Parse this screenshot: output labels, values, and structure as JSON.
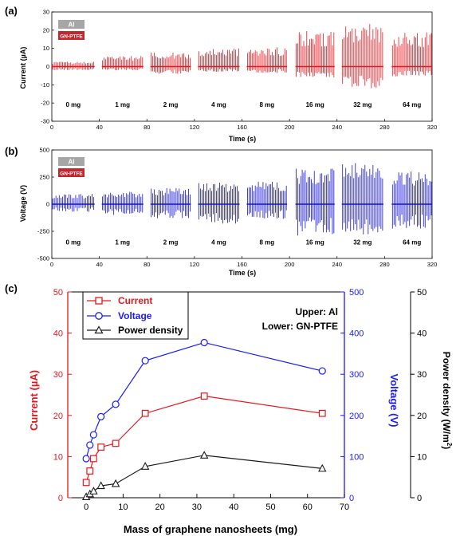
{
  "panel_labels": [
    "(a)",
    "(b)",
    "(c)"
  ],
  "chart_data": [
    {
      "type": "bar",
      "panel": "(a)",
      "ylabel": "Current (µA)",
      "xlabel": "Time (s)",
      "xlim": [
        0,
        320
      ],
      "ylim": [
        -30,
        30
      ],
      "xticks": [
        0,
        40,
        80,
        120,
        160,
        200,
        240,
        280,
        320
      ],
      "yticks": [
        -30,
        -20,
        -10,
        0,
        10,
        20,
        30
      ],
      "legend": [
        "Al",
        "GN-PTFE"
      ],
      "legend_colors": [
        "#a6a6a6",
        "#c0282d"
      ],
      "color": "#e8171d",
      "segments": [
        {
          "label": "0 mg",
          "x": [
            0,
            36
          ],
          "max": 2.7,
          "min": -2.0
        },
        {
          "label": "1 mg",
          "x": [
            42,
            77
          ],
          "max": 5.8,
          "min": -2.0
        },
        {
          "label": "2 mg",
          "x": [
            83,
            117
          ],
          "max": 7.8,
          "min": -4.0
        },
        {
          "label": "4 mg",
          "x": [
            123,
            158
          ],
          "max": 10.0,
          "min": -3.0
        },
        {
          "label": "8 mg",
          "x": [
            164,
            198
          ],
          "max": 10.6,
          "min": -3.5
        },
        {
          "label": "16 mg",
          "x": [
            205,
            238
          ],
          "max": 19.5,
          "min": -6.5
        },
        {
          "label": "32 mg",
          "x": [
            244,
            279
          ],
          "max": 23.5,
          "min": -12.0
        },
        {
          "label": "64 mg",
          "x": [
            286,
            320
          ],
          "max": 19.5,
          "min": -5.5
        }
      ]
    },
    {
      "type": "bar",
      "panel": "(b)",
      "ylabel": "Voltage (V)",
      "xlabel": "Time (s)",
      "xlim": [
        0,
        320
      ],
      "ylim": [
        -500,
        500
      ],
      "xticks": [
        0,
        40,
        80,
        120,
        160,
        200,
        240,
        280,
        320
      ],
      "yticks": [
        -500,
        -250,
        0,
        250,
        500
      ],
      "legend": [
        "Al",
        "GN-PTFE"
      ],
      "legend_colors": [
        "#a6a6a6",
        "#c0282d"
      ],
      "color": "#1010dd",
      "segments": [
        {
          "label": "0 mg",
          "x": [
            0,
            36
          ],
          "max": 95,
          "min": -70
        },
        {
          "label": "1 mg",
          "x": [
            42,
            77
          ],
          "max": 115,
          "min": -100
        },
        {
          "label": "2 mg",
          "x": [
            83,
            117
          ],
          "max": 150,
          "min": -130
        },
        {
          "label": "4 mg",
          "x": [
            123,
            158
          ],
          "max": 200,
          "min": -180
        },
        {
          "label": "8 mg",
          "x": [
            164,
            198
          ],
          "max": 210,
          "min": -140
        },
        {
          "label": "16 mg",
          "x": [
            205,
            238
          ],
          "max": 330,
          "min": -290
        },
        {
          "label": "32 mg",
          "x": [
            244,
            279
          ],
          "max": 380,
          "min": -290
        },
        {
          "label": "64 mg",
          "x": [
            286,
            320
          ],
          "max": 310,
          "min": -230
        }
      ]
    },
    {
      "type": "line",
      "panel": "(c)",
      "xlabel": "Mass of graphene nanosheets (mg)",
      "xlim": [
        -5,
        70
      ],
      "xticks": [
        0,
        10,
        20,
        30,
        40,
        50,
        60,
        70
      ],
      "x": [
        0,
        1,
        2,
        4,
        8,
        16,
        32,
        64
      ],
      "axes": {
        "left": {
          "label": "Current (µA)",
          "lim": [
            0,
            50
          ],
          "ticks": [
            0,
            10,
            20,
            30,
            40,
            50
          ],
          "color": "#e8171d"
        },
        "right1": {
          "label": "Voltage (V)",
          "lim": [
            0,
            500
          ],
          "ticks": [
            0,
            100,
            200,
            300,
            400,
            500
          ],
          "color": "#1a1aff"
        },
        "right2": {
          "label": "Power density (W/m",
          "label_sup": "2",
          "label_end": ")",
          "lim": [
            0,
            50
          ],
          "ticks": [
            0,
            10,
            20,
            30,
            40,
            50
          ],
          "color": "#000000"
        }
      },
      "series": [
        {
          "name": "Current",
          "axis": "left",
          "marker": "square",
          "color": "#e8171d",
          "values": [
            3.7,
            6.5,
            9.5,
            12.3,
            13.2,
            20.5,
            24.7,
            20.5
          ]
        },
        {
          "name": "Voltage",
          "axis": "right1",
          "marker": "circle",
          "color": "#1a1aff",
          "values": [
            95,
            128,
            153,
            197,
            227,
            333,
            377,
            308
          ]
        },
        {
          "name": "Power density",
          "axis": "right2",
          "marker": "triangle",
          "color": "#1a1a1a",
          "values": [
            0.2,
            0.9,
            1.6,
            2.9,
            3.4,
            7.6,
            10.3,
            7.1
          ]
        }
      ],
      "annotation": [
        "Upper: Al",
        "Lower: GN-PTFE"
      ],
      "legend_position": "top-left",
      "grid": false
    }
  ]
}
